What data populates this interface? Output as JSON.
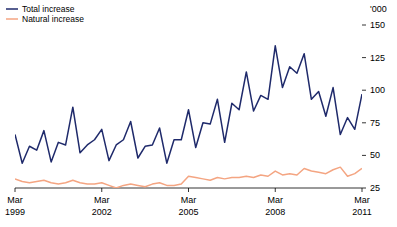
{
  "chart_data": {
    "type": "line",
    "y_label": "'000",
    "categories": [
      "Mar 1999",
      null,
      null,
      null,
      null,
      null,
      null,
      null,
      null,
      null,
      null,
      null,
      "Mar 2002",
      null,
      null,
      null,
      null,
      null,
      null,
      null,
      null,
      null,
      null,
      null,
      "Mar 2005",
      null,
      null,
      null,
      null,
      null,
      null,
      null,
      null,
      null,
      null,
      null,
      "Mar 2008",
      null,
      null,
      null,
      null,
      null,
      null,
      null,
      null,
      null,
      null,
      null,
      "Mar 2011"
    ],
    "series": [
      {
        "name": "Total increase",
        "color": "#1f2a6b",
        "values": [
          66,
          44,
          57,
          54,
          69,
          45,
          60,
          58,
          87,
          52,
          58,
          62,
          70,
          46,
          58,
          62,
          76,
          48,
          57,
          58,
          71,
          44,
          62,
          62,
          85,
          56,
          75,
          74,
          93,
          60,
          90,
          85,
          114,
          84,
          96,
          93,
          134,
          102,
          118,
          113,
          128,
          93,
          99,
          80,
          102,
          66,
          79,
          70,
          97
        ]
      },
      {
        "name": "Natural increase",
        "color": "#f4a582",
        "values": [
          32,
          30,
          29,
          30,
          31,
          29,
          28,
          29,
          31,
          29,
          28,
          28,
          29,
          27,
          25,
          27,
          28,
          27,
          26,
          28,
          29,
          27,
          27,
          28,
          34,
          33,
          32,
          31,
          33,
          32,
          33,
          33,
          34,
          33,
          35,
          34,
          38,
          35,
          36,
          35,
          40,
          38,
          37,
          36,
          39,
          41,
          34,
          36,
          40
        ]
      }
    ],
    "ylim": [
      25,
      150
    ],
    "yticks": [
      25,
      50,
      75,
      100,
      125,
      150
    ],
    "legend": "top-left",
    "grid": false
  }
}
